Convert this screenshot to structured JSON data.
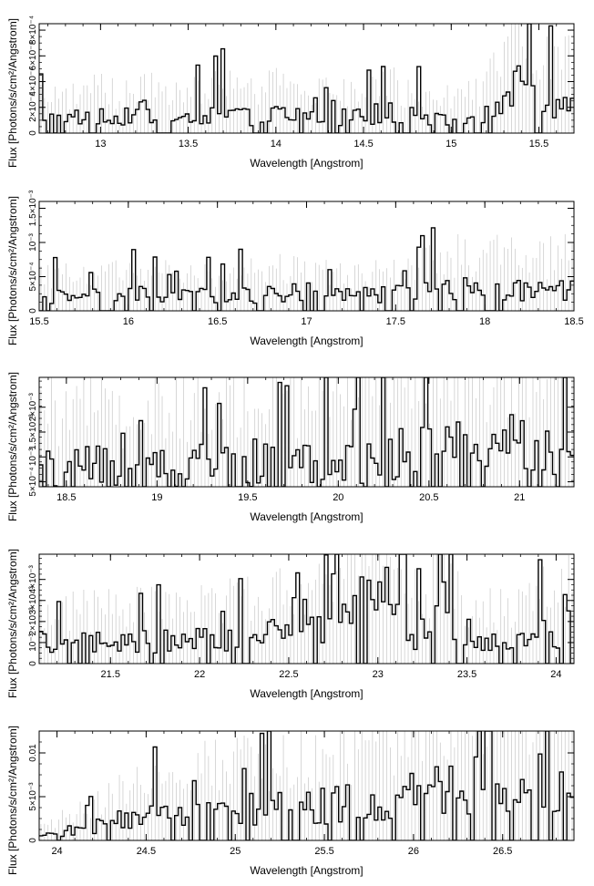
{
  "figure": {
    "xlabel": "Wavelength [Angstrom]",
    "ylabel": "Flux [Photons/s/cm²/Angstrom]"
  },
  "colors": {
    "data": "#000000",
    "model": "#c8c8c8",
    "errorbar": "#bdbdbd",
    "axis": "#000000"
  },
  "chart_data": [
    {
      "type": "line",
      "xlim": [
        12.65,
        15.7
      ],
      "ylim": [
        0,
        0.00085
      ],
      "x_ticks": [
        13,
        13.5,
        14,
        14.5,
        15,
        15.5
      ],
      "x_tick_labels": [
        "13",
        "13.5",
        "14",
        "14.5",
        "15",
        "15.5"
      ],
      "y_ticks": [
        0,
        0.0002,
        0.0004,
        0.0006,
        0.0008
      ],
      "y_tick_labels": [
        "0",
        "2×10⁻⁴",
        "4×10⁻⁴",
        "6×10⁻⁴",
        "8×10⁻⁴"
      ],
      "xlabel": "Wavelength [Angstrom]",
      "ylabel": "Flux [Photons/s/cm²/Angstrom]",
      "series": [
        {
          "x": [
            12.65,
            12.8,
            12.95,
            13.1,
            13.25,
            13.4,
            13.55,
            13.7,
            13.85,
            14.0,
            14.15,
            14.3,
            14.45,
            14.6,
            14.75,
            14.9,
            15.05,
            15.2,
            15.35,
            15.5,
            15.7
          ],
          "y": [
            0.00012,
            0.0001,
            0.00013,
            0.00011,
            0.00015,
            0.0001,
            0.00012,
            0.00016,
            0.00011,
            0.00014,
            0.00013,
            0.00012,
            0.00011,
            0.00015,
            0.00012,
            0.00011,
            0.00012,
            0.00013,
            0.00035,
            0.0002,
            0.0002
          ]
        }
      ]
    },
    {
      "type": "line",
      "xlim": [
        15.5,
        18.5
      ],
      "ylim": [
        0,
        0.0016
      ],
      "x_ticks": [
        15.5,
        16,
        16.5,
        17,
        17.5,
        18,
        18.5
      ],
      "x_tick_labels": [
        "15.5",
        "16",
        "16.5",
        "17",
        "17.5",
        "18",
        "18.5"
      ],
      "y_ticks": [
        0,
        0.0005,
        0.001,
        0.0015
      ],
      "y_tick_labels": [
        "0",
        "5×10⁻⁴",
        "10⁻³",
        "1.5×10⁻³"
      ],
      "xlabel": "Wavelength [Angstrom]",
      "ylabel": "Flux [Photons/s/cm²/Angstrom]",
      "series": [
        {
          "x": [
            15.5,
            15.75,
            16.0,
            16.25,
            16.5,
            16.75,
            17.0,
            17.25,
            17.5,
            17.75,
            18.0,
            18.25,
            18.5
          ],
          "y": [
            0.0002,
            0.00018,
            0.00022,
            0.0002,
            0.00019,
            0.00021,
            0.00025,
            0.0002,
            0.00022,
            0.0003,
            0.0003,
            0.00028,
            0.0003
          ]
        }
      ]
    },
    {
      "type": "line",
      "xlim": [
        18.35,
        21.3
      ],
      "ylim": [
        0.0004,
        0.0026
      ],
      "x_ticks": [
        18.5,
        19,
        19.5,
        20,
        20.5,
        21
      ],
      "x_tick_labels": [
        "18.5",
        "19",
        "19.5",
        "20",
        "20.5",
        "21"
      ],
      "y_ticks": [
        0.0005,
        0.001,
        0.0015,
        0.002
      ],
      "y_tick_labels": [
        "5×10⁻⁴",
        "10⁻³",
        "1.5×10⁻³",
        "2×10⁻³"
      ],
      "xlabel": "Wavelength [Angstrom]",
      "ylabel": "Flux [Photons/s/cm²/Angstrom]",
      "series": [
        {
          "x": [
            18.35,
            18.7,
            19.0,
            19.3,
            19.6,
            19.9,
            20.2,
            20.5,
            20.8,
            21.0,
            21.3
          ],
          "y": [
            0.0007,
            0.00072,
            0.00075,
            0.00078,
            0.00082,
            0.00088,
            0.00095,
            0.001,
            0.00105,
            0.0011,
            0.00115
          ]
        }
      ]
    },
    {
      "type": "line",
      "xlim": [
        21.1,
        24.1
      ],
      "ylim": [
        0,
        0.0052
      ],
      "x_ticks": [
        21.5,
        22,
        22.5,
        23,
        23.5,
        24
      ],
      "x_tick_labels": [
        "21.5",
        "22",
        "22.5",
        "23",
        "23.5",
        "24"
      ],
      "y_ticks": [
        0,
        0.001,
        0.002,
        0.003,
        0.004
      ],
      "y_tick_labels": [
        "0",
        "10⁻³",
        "2×10⁻³",
        "3×10⁻³",
        "4×10⁻³"
      ],
      "xlabel": "Wavelength [Angstrom]",
      "ylabel": "Flux [Photons/s/cm²/Angstrom]",
      "series": [
        {
          "x": [
            21.1,
            21.5,
            22.0,
            22.5,
            22.8,
            22.95,
            23.1,
            23.25,
            23.35,
            23.5,
            23.8,
            24.1
          ],
          "y": [
            0.0009,
            0.00095,
            0.001,
            0.0013,
            0.0018,
            0.0028,
            0.0017,
            0.001,
            0.0018,
            0.0009,
            0.001,
            0.0016
          ]
        }
      ]
    },
    {
      "type": "line",
      "xlim": [
        23.9,
        26.9
      ],
      "ylim": [
        0,
        0.0125
      ],
      "x_ticks": [
        24,
        24.5,
        25,
        25.5,
        26,
        26.5
      ],
      "x_tick_labels": [
        "24",
        "24.5",
        "25",
        "25.5",
        "26",
        "26.5"
      ],
      "y_ticks": [
        0,
        0.005,
        0.01
      ],
      "y_tick_labels": [
        "0",
        "5×10⁻³",
        "0.01"
      ],
      "xlabel": "Wavelength [Angstrom]",
      "ylabel": "Flux [Photons/s/cm²/Angstrom]",
      "series": [
        {
          "x": [
            23.9,
            24.2,
            24.5,
            24.8,
            25.1,
            25.4,
            25.7,
            26.0,
            26.3,
            26.6,
            26.9
          ],
          "y": [
            0.0005,
            0.0015,
            0.0025,
            0.003,
            0.0033,
            0.0035,
            0.004,
            0.005,
            0.0058,
            0.006,
            0.0063
          ]
        }
      ]
    }
  ]
}
